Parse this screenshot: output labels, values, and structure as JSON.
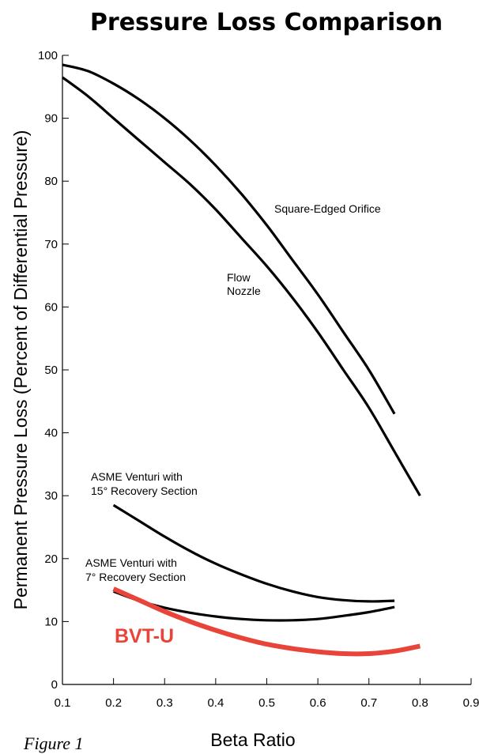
{
  "figure_label": "Figure 1",
  "chart_data": {
    "type": "line",
    "title": "Pressure Loss Comparison",
    "xlabel": "Beta Ratio",
    "ylabel": "Permanent Pressure Loss (Percent of Differential Pressure)",
    "xlim": [
      0.1,
      0.9
    ],
    "ylim": [
      0,
      100
    ],
    "x_ticks": [
      "0.1",
      "0.2",
      "0.3",
      "0.4",
      "0.5",
      "0.6",
      "0.7",
      "0.8",
      "0.9"
    ],
    "y_ticks": [
      "0",
      "10",
      "20",
      "30",
      "40",
      "50",
      "60",
      "70",
      "80",
      "90",
      "100"
    ],
    "grid": false,
    "legend": "none",
    "series": [
      {
        "name": "Square-Edged Orifice",
        "label_lines": [
          "Square-Edged Orifice"
        ],
        "color": "#000000",
        "x": [
          0.1,
          0.15,
          0.2,
          0.25,
          0.3,
          0.35,
          0.4,
          0.45,
          0.5,
          0.55,
          0.6,
          0.65,
          0.7,
          0.75
        ],
        "y": [
          98.5,
          97.5,
          95.5,
          93.0,
          90.0,
          86.5,
          82.5,
          78.0,
          73.0,
          67.5,
          62.0,
          56.0,
          50.0,
          43.0
        ]
      },
      {
        "name": "Flow Nozzle",
        "label_lines": [
          "Flow",
          "Nozzle"
        ],
        "color": "#000000",
        "x": [
          0.1,
          0.15,
          0.2,
          0.25,
          0.3,
          0.35,
          0.4,
          0.45,
          0.5,
          0.55,
          0.6,
          0.65,
          0.7,
          0.75,
          0.8
        ],
        "y": [
          96.5,
          93.5,
          90.0,
          86.5,
          83.0,
          79.5,
          75.5,
          71.0,
          66.5,
          61.5,
          56.0,
          50.0,
          44.0,
          37.0,
          30.0
        ]
      },
      {
        "name": "ASME Venturi with 15° Recovery Section",
        "label_lines": [
          "ASME Venturi with",
          "15° Recovery Section"
        ],
        "color": "#000000",
        "x": [
          0.2,
          0.25,
          0.3,
          0.35,
          0.4,
          0.45,
          0.5,
          0.55,
          0.6,
          0.65,
          0.7,
          0.75
        ],
        "y": [
          28.5,
          26.0,
          23.5,
          21.2,
          19.2,
          17.5,
          16.0,
          14.8,
          13.9,
          13.4,
          13.2,
          13.3
        ]
      },
      {
        "name": "ASME Venturi with 7° Recovery Section",
        "label_lines": [
          "ASME Venturi with",
          "7° Recovery Section"
        ],
        "color": "#000000",
        "x": [
          0.2,
          0.25,
          0.3,
          0.35,
          0.4,
          0.45,
          0.5,
          0.55,
          0.6,
          0.65,
          0.7,
          0.75
        ],
        "y": [
          14.8,
          13.3,
          12.2,
          11.4,
          10.8,
          10.4,
          10.2,
          10.2,
          10.4,
          10.9,
          11.5,
          12.3
        ]
      },
      {
        "name": "BVT-U",
        "label_lines": [
          "BVT-U"
        ],
        "color": "#e8443a",
        "x": [
          0.2,
          0.25,
          0.3,
          0.35,
          0.4,
          0.45,
          0.5,
          0.55,
          0.6,
          0.65,
          0.7,
          0.75,
          0.8
        ],
        "y": [
          15.2,
          13.4,
          11.6,
          10.0,
          8.6,
          7.4,
          6.4,
          5.7,
          5.2,
          4.9,
          4.9,
          5.3,
          6.1
        ]
      }
    ]
  }
}
